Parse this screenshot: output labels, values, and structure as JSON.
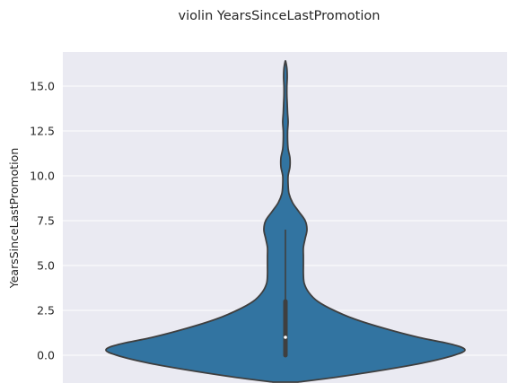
{
  "chart_data": {
    "type": "violin",
    "title": "violin YearsSinceLastPromotion",
    "xlabel": "",
    "ylabel": "YearsSinceLastPromotion",
    "ylim": [
      -1.55,
      16.9
    ],
    "yticks": [
      0.0,
      2.5,
      5.0,
      7.5,
      10.0,
      12.5,
      15.0
    ],
    "ytick_labels": [
      "0.0",
      "2.5",
      "5.0",
      "7.5",
      "10.0",
      "12.5",
      "15.0"
    ],
    "grid": true,
    "colors": {
      "background": "#eaeaf2",
      "grid": "#ffffff",
      "violin_fill": "#3274a1",
      "outline": "#3f3f3f",
      "median": "#ffffff"
    },
    "box": {
      "whisker_low": 0.0,
      "q1": 0.0,
      "median": 1.0,
      "q3": 3.0,
      "whisker_high": 7.0
    },
    "density_profile": {
      "y": [
        -1.5,
        -1.2,
        -0.8,
        -0.4,
        0.0,
        0.3,
        0.6,
        1.0,
        1.5,
        2.0,
        2.5,
        3.0,
        3.5,
        4.0,
        4.5,
        5.0,
        5.5,
        6.0,
        6.5,
        7.0,
        7.5,
        8.0,
        8.5,
        9.0,
        9.5,
        10.0,
        10.5,
        11.0,
        11.5,
        12.0,
        12.5,
        13.0,
        13.5,
        14.0,
        14.5,
        15.0,
        15.5,
        16.0,
        16.4
      ],
      "relative_width": [
        0.07,
        0.3,
        0.56,
        0.78,
        0.94,
        1.0,
        0.93,
        0.74,
        0.55,
        0.39,
        0.27,
        0.18,
        0.13,
        0.105,
        0.1,
        0.1,
        0.1,
        0.1,
        0.11,
        0.12,
        0.11,
        0.075,
        0.04,
        0.02,
        0.015,
        0.015,
        0.025,
        0.025,
        0.015,
        0.012,
        0.012,
        0.015,
        0.012,
        0.01,
        0.008,
        0.008,
        0.01,
        0.008,
        0.001
      ]
    }
  }
}
